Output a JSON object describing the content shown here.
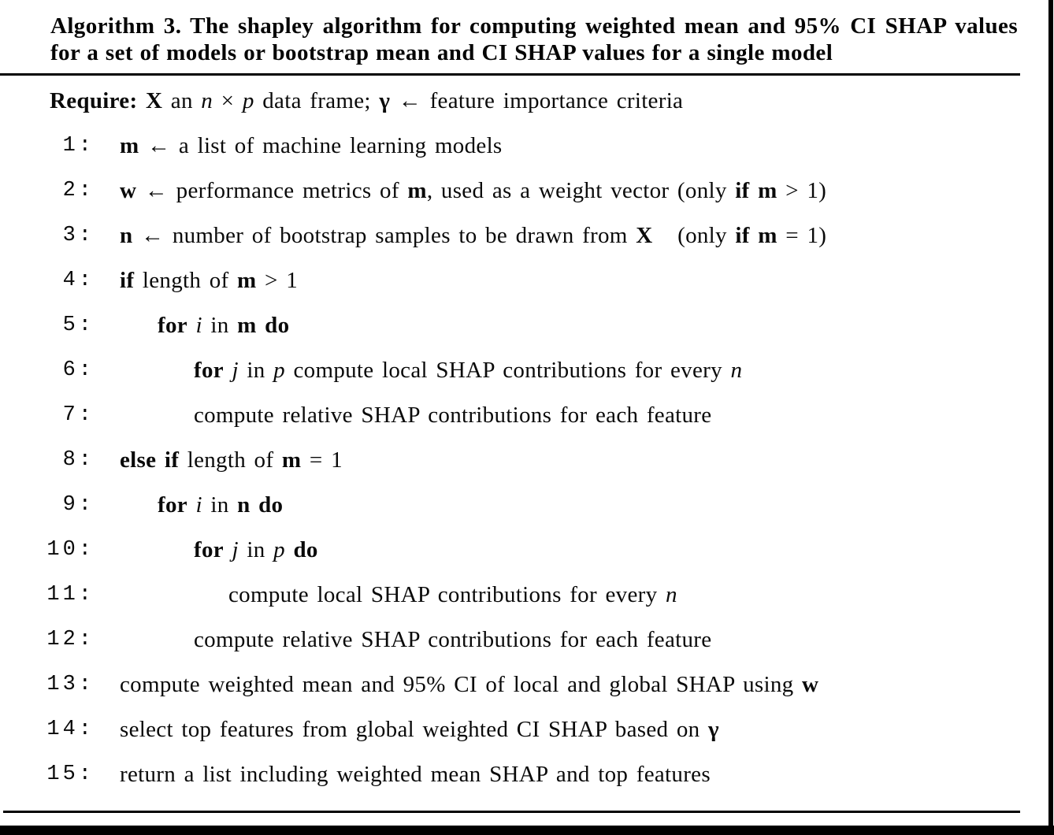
{
  "colors": {
    "ink": "#0a0a0a",
    "background": "#ffffff",
    "border_bars": "#000000"
  },
  "algorithm": {
    "title": "Algorithm 3. The shapley algorithm for computing weighted mean and 95% CI SHAP values for a set of models or bootstrap mean and CI SHAP values for a single model",
    "lines": [
      {
        "number": "",
        "indent": -1,
        "segments": [
          {
            "t": "Require: ",
            "s": "b"
          },
          {
            "t": "X",
            "s": "b"
          },
          {
            "t": " an ",
            "s": "r"
          },
          {
            "t": "n",
            "s": "i"
          },
          {
            "t": " × ",
            "s": "r"
          },
          {
            "t": "p",
            "s": "i"
          },
          {
            "t": " data frame; ",
            "s": "r"
          },
          {
            "t": "γ",
            "s": "b"
          },
          {
            "t": " ← feature importance criteria",
            "s": "r"
          }
        ]
      },
      {
        "number": "1",
        "indent": 0,
        "segments": [
          {
            "t": "m",
            "s": "b"
          },
          {
            "t": " ← a list of machine learning models",
            "s": "r"
          }
        ]
      },
      {
        "number": "2",
        "indent": 0,
        "segments": [
          {
            "t": "w",
            "s": "b"
          },
          {
            "t": " ← performance metrics of ",
            "s": "r"
          },
          {
            "t": "m",
            "s": "b"
          },
          {
            "t": ", used as a weight vector (only ",
            "s": "r"
          },
          {
            "t": "if",
            "s": "b"
          },
          {
            "t": " ",
            "s": "r"
          },
          {
            "t": "m",
            "s": "b"
          },
          {
            "t": " > 1)",
            "s": "r"
          }
        ]
      },
      {
        "number": "3",
        "indent": 0,
        "segments": [
          {
            "t": "n",
            "s": "b"
          },
          {
            "t": " ← number of bootstrap samples to be drawn from ",
            "s": "r"
          },
          {
            "t": "X",
            "s": "b"
          },
          {
            "t": "   (only ",
            "s": "r"
          },
          {
            "t": "if",
            "s": "b"
          },
          {
            "t": " ",
            "s": "r"
          },
          {
            "t": "m",
            "s": "b"
          },
          {
            "t": " = 1)",
            "s": "r"
          }
        ]
      },
      {
        "number": "4",
        "indent": 0,
        "segments": [
          {
            "t": "if",
            "s": "b"
          },
          {
            "t": " length of ",
            "s": "r"
          },
          {
            "t": "m",
            "s": "b"
          },
          {
            "t": " > 1",
            "s": "r"
          }
        ]
      },
      {
        "number": "5",
        "indent": 1,
        "segments": [
          {
            "t": "for",
            "s": "b"
          },
          {
            "t": " ",
            "s": "r"
          },
          {
            "t": "i",
            "s": "i"
          },
          {
            "t": " in ",
            "s": "r"
          },
          {
            "t": "m",
            "s": "b"
          },
          {
            "t": " ",
            "s": "r"
          },
          {
            "t": "do",
            "s": "b"
          }
        ]
      },
      {
        "number": "6",
        "indent": 2,
        "segments": [
          {
            "t": "for",
            "s": "b"
          },
          {
            "t": " ",
            "s": "r"
          },
          {
            "t": "j",
            "s": "i"
          },
          {
            "t": " in ",
            "s": "r"
          },
          {
            "t": "p",
            "s": "i"
          },
          {
            "t": " compute local SHAP contributions for every ",
            "s": "r"
          },
          {
            "t": "n",
            "s": "i"
          }
        ]
      },
      {
        "number": "7",
        "indent": 2,
        "segments": [
          {
            "t": "compute relative SHAP contributions for each feature",
            "s": "r"
          }
        ]
      },
      {
        "number": "8",
        "indent": 0,
        "segments": [
          {
            "t": "else if",
            "s": "b"
          },
          {
            "t": " length of ",
            "s": "r"
          },
          {
            "t": "m",
            "s": "b"
          },
          {
            "t": " = 1",
            "s": "r"
          }
        ]
      },
      {
        "number": "9",
        "indent": 1,
        "segments": [
          {
            "t": "for",
            "s": "b"
          },
          {
            "t": " ",
            "s": "r"
          },
          {
            "t": "i",
            "s": "i"
          },
          {
            "t": " in ",
            "s": "r"
          },
          {
            "t": "n",
            "s": "b"
          },
          {
            "t": " ",
            "s": "r"
          },
          {
            "t": "do",
            "s": "b"
          }
        ]
      },
      {
        "number": "10",
        "indent": 2,
        "segments": [
          {
            "t": "for",
            "s": "b"
          },
          {
            "t": " ",
            "s": "r"
          },
          {
            "t": "j",
            "s": "i"
          },
          {
            "t": " in ",
            "s": "r"
          },
          {
            "t": "p",
            "s": "i"
          },
          {
            "t": " ",
            "s": "r"
          },
          {
            "t": "do",
            "s": "b"
          }
        ]
      },
      {
        "number": "11",
        "indent": 3,
        "segments": [
          {
            "t": "compute local SHAP contributions for every ",
            "s": "r"
          },
          {
            "t": "n",
            "s": "i"
          }
        ]
      },
      {
        "number": "12",
        "indent": 2,
        "segments": [
          {
            "t": "compute relative SHAP contributions for each feature",
            "s": "r"
          }
        ]
      },
      {
        "number": "13",
        "indent": 0,
        "segments": [
          {
            "t": "compute weighted mean and 95% CI of local and global SHAP using ",
            "s": "r"
          },
          {
            "t": "w",
            "s": "b"
          }
        ]
      },
      {
        "number": "14",
        "indent": 0,
        "segments": [
          {
            "t": "select top features from global weighted CI SHAP based on ",
            "s": "r"
          },
          {
            "t": "γ",
            "s": "b"
          }
        ]
      },
      {
        "number": "15",
        "indent": 0,
        "segments": [
          {
            "t": "return a list including weighted mean SHAP and top features",
            "s": "r"
          }
        ]
      }
    ]
  }
}
